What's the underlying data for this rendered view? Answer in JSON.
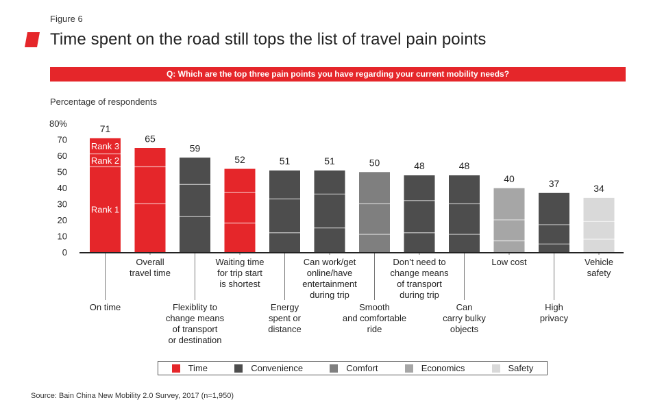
{
  "figure_label": "Figure 6",
  "title": "Time spent on the road still tops the list of travel pain points",
  "question": "Q: Which are the top three pain points you have regarding your current mobility needs?",
  "subtitle": "Percentage of respondents",
  "source": "Source: Bain China New Mobility 2.0 Survey, 2017 (n=1,950)",
  "colors": {
    "accent": "#e5262a",
    "Time": "#e5262a",
    "Convenience": "#4d4d4d",
    "Comfort": "#7f7f7f",
    "Economics": "#a6a6a6",
    "Safety": "#d9d9d9"
  },
  "legend": [
    {
      "key": "Time",
      "label": "Time"
    },
    {
      "key": "Convenience",
      "label": "Convenience"
    },
    {
      "key": "Comfort",
      "label": "Comfort"
    },
    {
      "key": "Economics",
      "label": "Economics"
    },
    {
      "key": "Safety",
      "label": "Safety"
    }
  ],
  "chart_data": {
    "type": "bar",
    "stacked": true,
    "ylim": [
      0,
      80
    ],
    "yticks": [
      "0",
      "10",
      "20",
      "30",
      "40",
      "50",
      "60",
      "70",
      "80%"
    ],
    "grid": false,
    "legend_position": "bottom",
    "rank_labels": [
      "Rank 1",
      "Rank 2",
      "Rank 3"
    ],
    "categories": [
      {
        "label": [
          "On time"
        ],
        "category": "Time",
        "total": 71,
        "segments": [
          53,
          8,
          10
        ],
        "label_row": "low"
      },
      {
        "label": [
          "Overall",
          "travel time"
        ],
        "category": "Time",
        "total": 65,
        "segments": [
          30,
          23,
          12
        ],
        "label_row": "high"
      },
      {
        "label": [
          "Flexiblity to",
          "change means",
          "of transport",
          "or destination"
        ],
        "category": "Convenience",
        "total": 59,
        "segments": [
          22,
          20,
          17
        ],
        "label_row": "low"
      },
      {
        "label": [
          "Waiting time",
          "for trip start",
          "is shortest"
        ],
        "category": "Time",
        "total": 52,
        "segments": [
          18,
          19,
          15
        ],
        "label_row": "high"
      },
      {
        "label": [
          "Energy",
          "spent or",
          "distance"
        ],
        "category": "Convenience",
        "total": 51,
        "segments": [
          12,
          21,
          18
        ],
        "label_row": "low"
      },
      {
        "label": [
          "Can work/get",
          "online/have",
          "entertainment",
          "during trip"
        ],
        "category": "Convenience",
        "total": 51,
        "segments": [
          15,
          21,
          15
        ],
        "label_row": "high"
      },
      {
        "label": [
          "Smooth",
          "and comfortable",
          "ride"
        ],
        "category": "Comfort",
        "total": 50,
        "segments": [
          11,
          19,
          20
        ],
        "label_row": "low"
      },
      {
        "label": [
          "Don’t need to",
          "change means",
          "of transport",
          "during trip"
        ],
        "category": "Convenience",
        "total": 48,
        "segments": [
          12,
          20,
          16
        ],
        "label_row": "high"
      },
      {
        "label": [
          "Can",
          "carry bulky",
          "objects"
        ],
        "category": "Convenience",
        "total": 48,
        "segments": [
          11,
          19,
          18
        ],
        "label_row": "low"
      },
      {
        "label": [
          "Low cost"
        ],
        "category": "Economics",
        "total": 40,
        "segments": [
          7,
          13,
          20
        ],
        "label_row": "high"
      },
      {
        "label": [
          "High",
          "privacy"
        ],
        "category": "Convenience",
        "total": 37,
        "segments": [
          5,
          12,
          20
        ],
        "label_row": "low"
      },
      {
        "label": [
          "Vehicle",
          "safety"
        ],
        "category": "Safety",
        "total": 34,
        "segments": [
          8,
          11,
          15
        ],
        "label_row": "high"
      }
    ]
  }
}
